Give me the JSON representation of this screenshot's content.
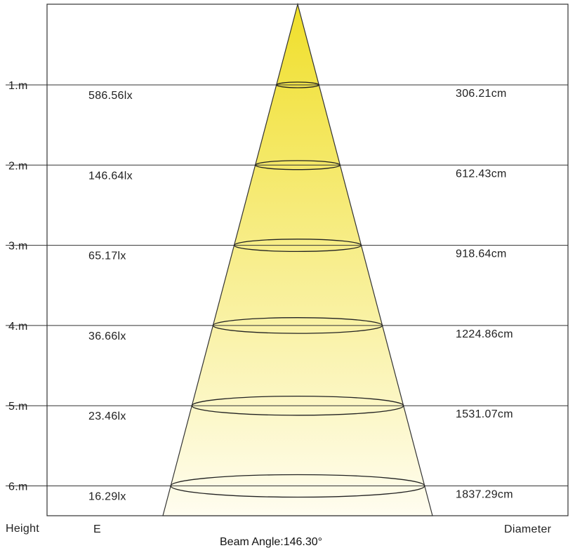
{
  "rows": [
    {
      "height": "1.m",
      "illuminance": "586.56lx",
      "diameter": "306.21cm"
    },
    {
      "height": "2.m",
      "illuminance": "146.64lx",
      "diameter": "612.43cm"
    },
    {
      "height": "3.m",
      "illuminance": "65.17lx",
      "diameter": "918.64cm"
    },
    {
      "height": "4.m",
      "illuminance": "36.66lx",
      "diameter": "1224.86cm"
    },
    {
      "height": "5.m",
      "illuminance": "23.46lx",
      "diameter": "1531.07cm"
    },
    {
      "height": "6.m",
      "illuminance": "16.29lx",
      "diameter": "1837.29cm"
    }
  ],
  "footer": {
    "height_label": "Height",
    "illuminance_label": "E",
    "diameter_label": "Diameter",
    "beam_angle": "Beam Angle:146.30°"
  },
  "colors": {
    "beam_top": "#f0df2a",
    "beam_bottom": "#fffdf0",
    "lines": "#333333"
  }
}
